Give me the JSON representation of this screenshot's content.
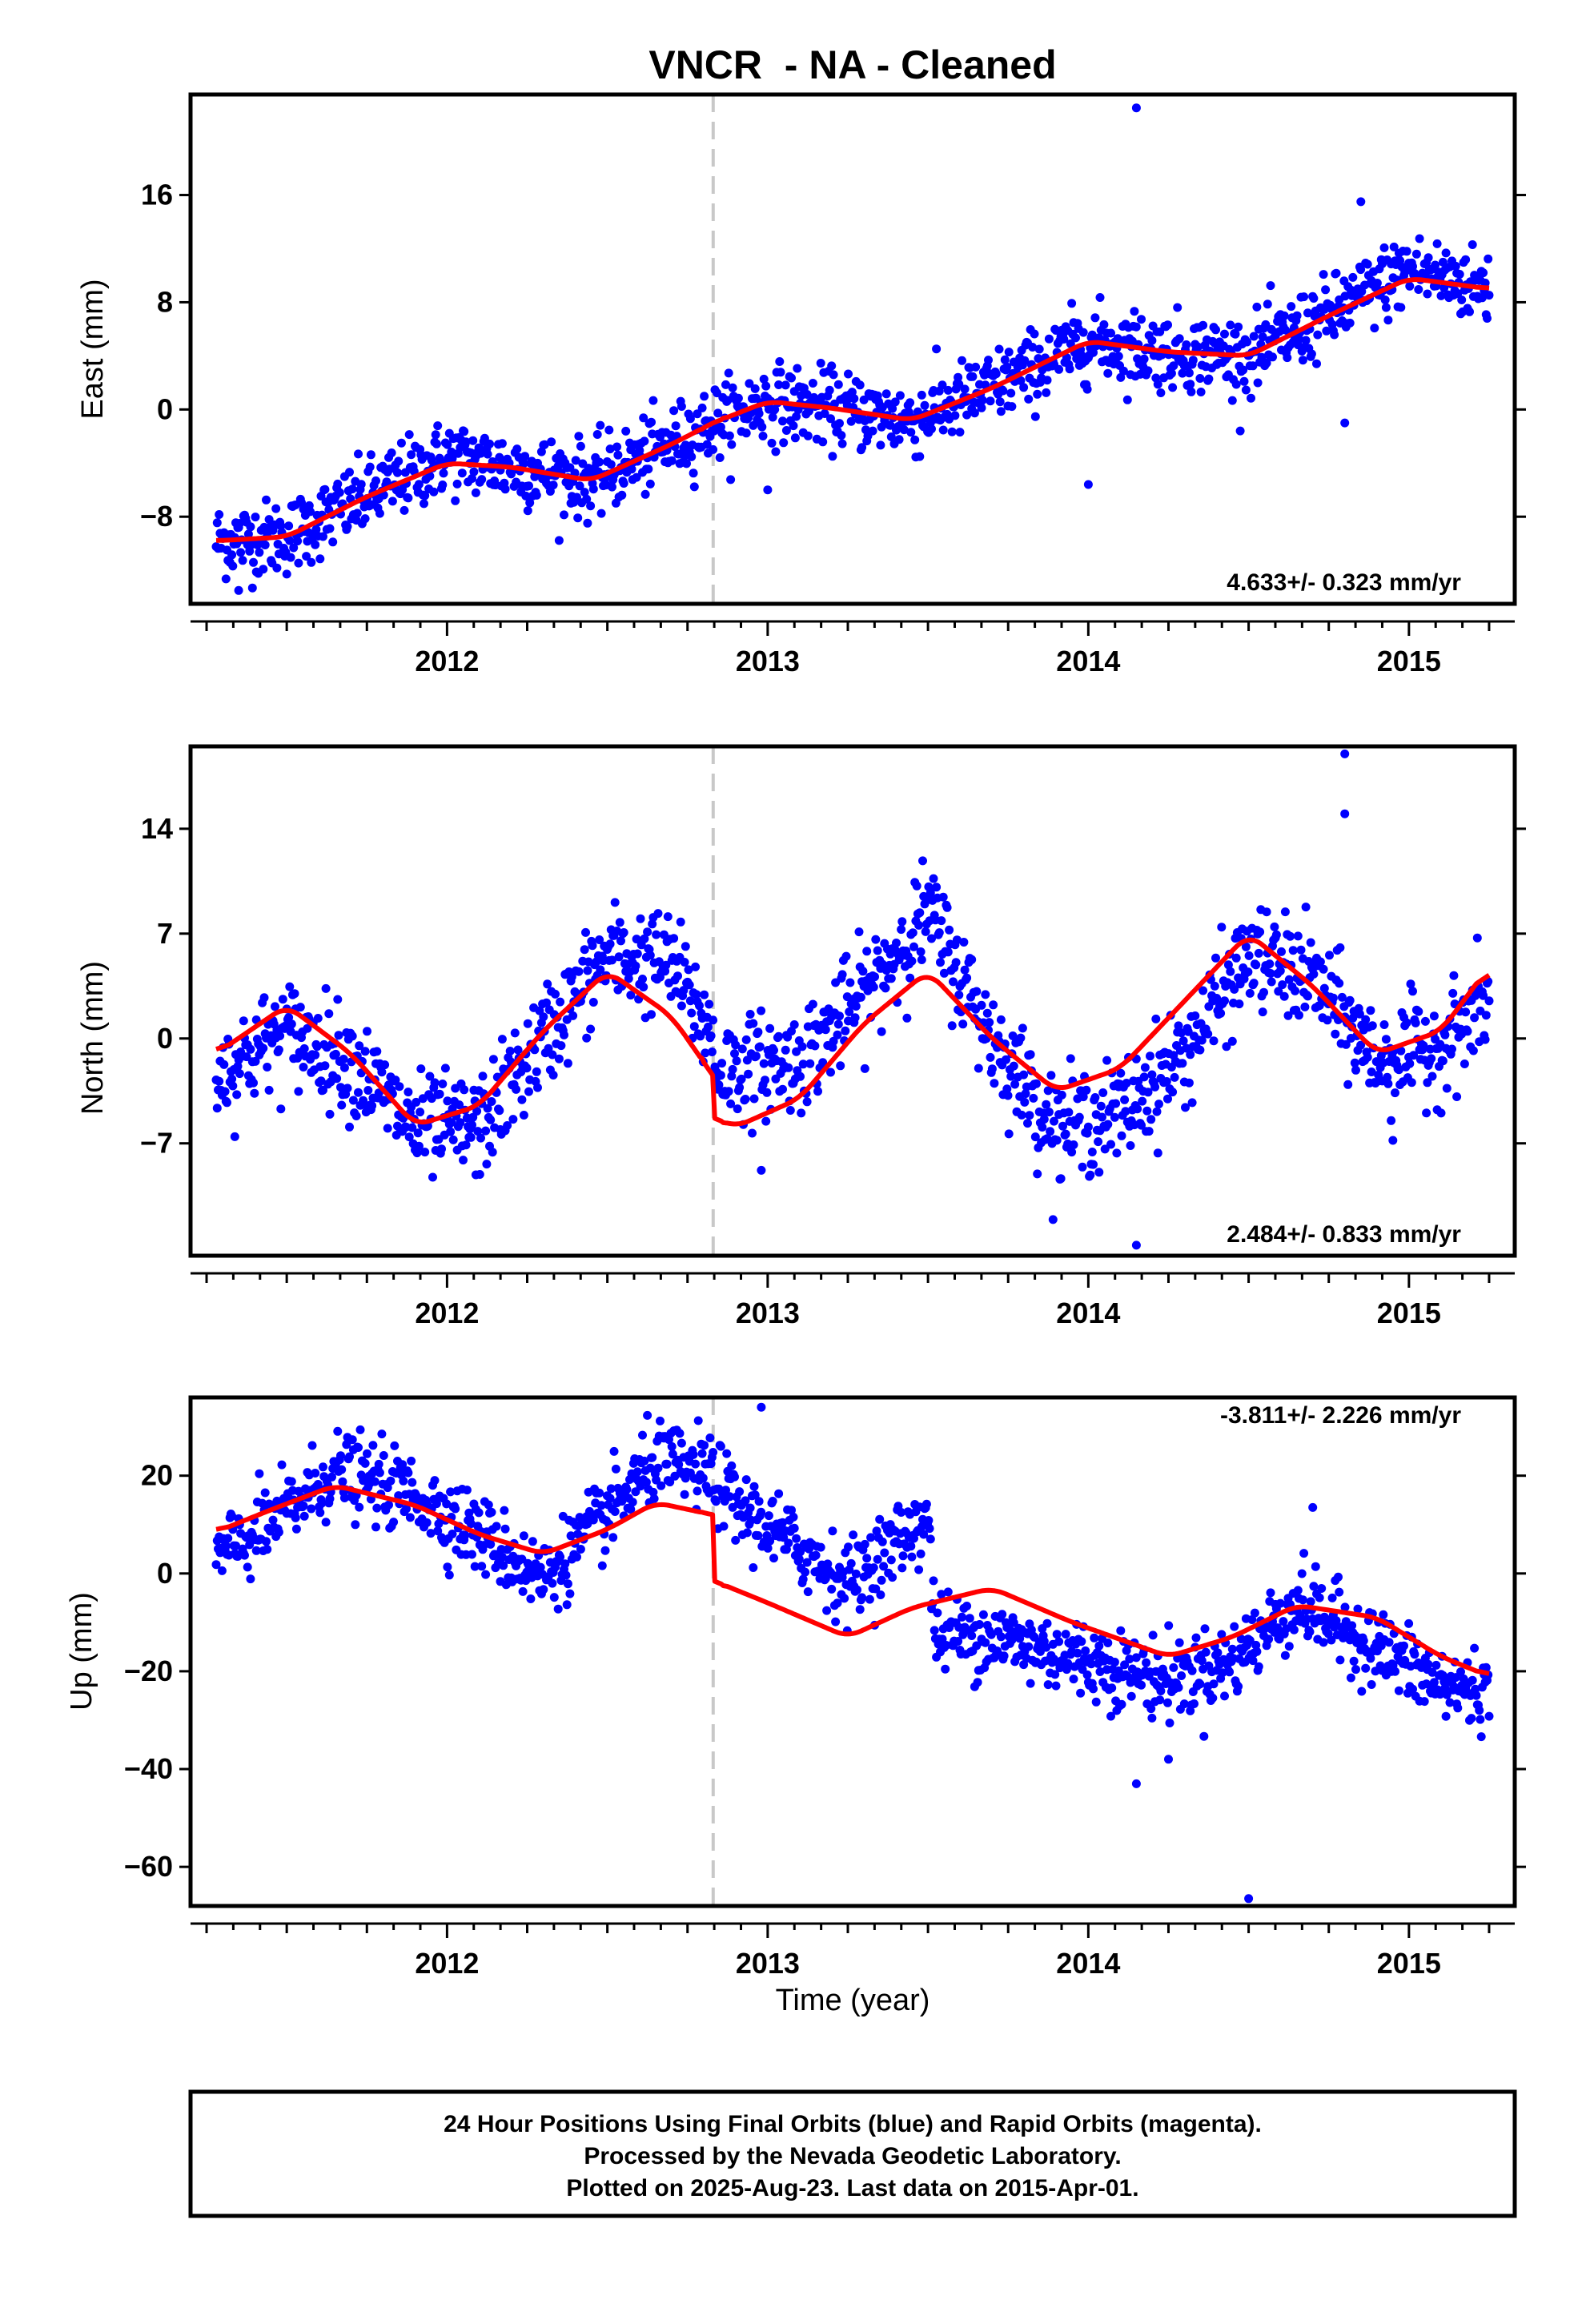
{
  "title": "VNCR  - NA - Cleaned",
  "colors": {
    "points": "#0000ff",
    "model": "#ff0000",
    "break": "#c8c8c8"
  },
  "chart_data": [
    {
      "type": "scatter",
      "name": "east",
      "ylabel": "East (mm)",
      "xlim": [
        2011.2,
        2015.33
      ],
      "ylim": [
        -14.5,
        23.5
      ],
      "yticks": [
        -8,
        0,
        8,
        16
      ],
      "xticks": [
        2012,
        2013,
        2014,
        2015
      ],
      "break_year": 2012.83,
      "rate_text": "4.633+/- 0.323 mm/yr",
      "model": {
        "x": [
          2011.28,
          2011.5,
          2011.75,
          2012.0,
          2012.2,
          2012.45,
          2012.7,
          2012.83,
          2013.0,
          2013.2,
          2013.45,
          2013.7,
          2014.0,
          2014.25,
          2014.5,
          2014.75,
          2015.0,
          2015.25
        ],
        "y": [
          -9.8,
          -9.5,
          -6.5,
          -4.0,
          -4.3,
          -5.3,
          -2.6,
          -1.0,
          0.6,
          0.1,
          -0.8,
          1.6,
          5.1,
          4.3,
          4.0,
          7.0,
          9.8,
          9.0
        ]
      },
      "points": {
        "base": [
          2011.28,
          2011.5,
          2011.75,
          2012.0,
          2012.2,
          2012.45,
          2012.7,
          2012.83,
          2013.0,
          2013.2,
          2013.45,
          2013.7,
          2014.0,
          2014.25,
          2014.5,
          2014.75,
          2015.0,
          2015.25
        ],
        "base_y": [
          -9.8,
          -9.5,
          -6.5,
          -3.5,
          -4.3,
          -5.3,
          -2.6,
          -1.0,
          0.6,
          0.1,
          -0.8,
          1.6,
          5.1,
          4.3,
          4.0,
          7.0,
          10.5,
          9.0
        ],
        "scatter": 1.4,
        "count": 1300,
        "outliers": [
          [
            2014.15,
            22.5
          ],
          [
            2014.0,
            -5.6
          ],
          [
            2013.0,
            -6.0
          ],
          [
            2014.8,
            -1.0
          ],
          [
            2014.85,
            15.5
          ],
          [
            2011.35,
            -13.5
          ]
        ]
      }
    },
    {
      "type": "scatter",
      "name": "north",
      "ylabel": "North (mm)",
      "xlim": [
        2011.2,
        2015.33
      ],
      "ylim": [
        -14.5,
        19.5
      ],
      "yticks": [
        -7,
        0,
        7,
        14
      ],
      "xticks": [
        2012,
        2013,
        2014,
        2015
      ],
      "break_year": 2012.83,
      "rate_text": "2.484+/- 0.833 mm/yr",
      "model": {
        "x": [
          2011.28,
          2011.5,
          2011.7,
          2011.9,
          2012.1,
          2012.3,
          2012.5,
          2012.7,
          2012.83,
          2012.831,
          2012.9,
          2013.1,
          2013.3,
          2013.5,
          2013.7,
          2013.9,
          2014.1,
          2014.3,
          2014.5,
          2014.7,
          2014.9,
          2015.1,
          2015.25
        ],
        "y": [
          -1.0,
          2.2,
          -1.0,
          -5.8,
          -4.5,
          0.5,
          4.5,
          1.5,
          -2.5,
          -5.3,
          -5.9,
          -4.0,
          1.0,
          4.5,
          0.0,
          -3.5,
          -2.0,
          2.5,
          7.0,
          3.5,
          -1.0,
          0.5,
          4.8
        ]
      },
      "points": {
        "base": [
          2011.28,
          2011.5,
          2011.7,
          2011.9,
          2012.1,
          2012.3,
          2012.5,
          2012.7,
          2012.83,
          2012.831,
          2012.9,
          2013.1,
          2013.3,
          2013.5,
          2013.7,
          2013.9,
          2014.1,
          2014.3,
          2014.5,
          2014.7,
          2014.9,
          2015.1,
          2015.25
        ],
        "base_y": [
          -2.5,
          0.5,
          -1.5,
          -6.0,
          -6.0,
          0.0,
          5.5,
          5.0,
          0.0,
          -2.0,
          -2.0,
          -1.5,
          3.0,
          8.5,
          0.0,
          -6.0,
          -5.0,
          -1.0,
          5.5,
          4.0,
          -1.5,
          -0.5,
          2.5
        ],
        "scatter": 1.7,
        "count": 1300,
        "outliers": [
          [
            2014.8,
            19.0
          ],
          [
            2014.8,
            15.0
          ],
          [
            2014.15,
            -13.8
          ],
          [
            2012.98,
            -8.8
          ],
          [
            2014.95,
            -6.8
          ]
        ]
      }
    },
    {
      "type": "scatter",
      "name": "up",
      "ylabel": "Up (mm)",
      "xlim": [
        2011.2,
        2015.33
      ],
      "ylim": [
        -68,
        36
      ],
      "yticks": [
        -60,
        -40,
        -20,
        0,
        20
      ],
      "xticks": [
        2012,
        2013,
        2014,
        2015
      ],
      "xlabel": "Time (year)",
      "break_year": 2012.83,
      "rate_text": "-3.811+/- 2.226 mm/yr",
      "model": {
        "x": [
          2011.28,
          2011.45,
          2011.65,
          2011.9,
          2012.1,
          2012.3,
          2012.5,
          2012.65,
          2012.83,
          2012.831,
          2013.0,
          2013.25,
          2013.45,
          2013.7,
          2013.95,
          2014.25,
          2014.45,
          2014.65,
          2014.9,
          2015.1,
          2015.25
        ],
        "y": [
          8.5,
          13,
          18,
          14,
          8,
          4,
          9,
          14.5,
          12,
          -1.5,
          -6,
          -13,
          -7,
          -3,
          -10,
          -17,
          -13,
          -6.5,
          -9,
          -17,
          -21
        ]
      },
      "points": {
        "base": [
          2011.28,
          2011.45,
          2011.65,
          2011.9,
          2012.1,
          2012.3,
          2012.5,
          2012.65,
          2012.83,
          2012.9,
          2013.1,
          2013.25,
          2013.5,
          2013.52,
          2013.7,
          2013.95,
          2014.25,
          2014.45,
          2014.65,
          2014.9,
          2015.1,
          2015.25
        ],
        "base_y": [
          3,
          10,
          21,
          16,
          8,
          -1,
          12,
          23,
          20,
          14,
          5,
          -2,
          12,
          -12,
          -13,
          -17,
          -22,
          -18,
          -6,
          -15,
          -23,
          -24
        ],
        "scatter": 4.0,
        "count": 1300,
        "outliers": [
          [
            2012.98,
            34
          ],
          [
            2014.5,
            -66.5
          ],
          [
            2014.15,
            -43
          ],
          [
            2014.7,
            13.5
          ],
          [
            2014.25,
            -38
          ]
        ]
      }
    }
  ],
  "footer": {
    "line1": "24 Hour Positions Using Final Orbits (blue) and Rapid Orbits (magenta).",
    "line2": "Processed by the Nevada Geodetic Laboratory.",
    "line3": "Plotted on 2025-Aug-23. Last data on 2015-Apr-01."
  }
}
